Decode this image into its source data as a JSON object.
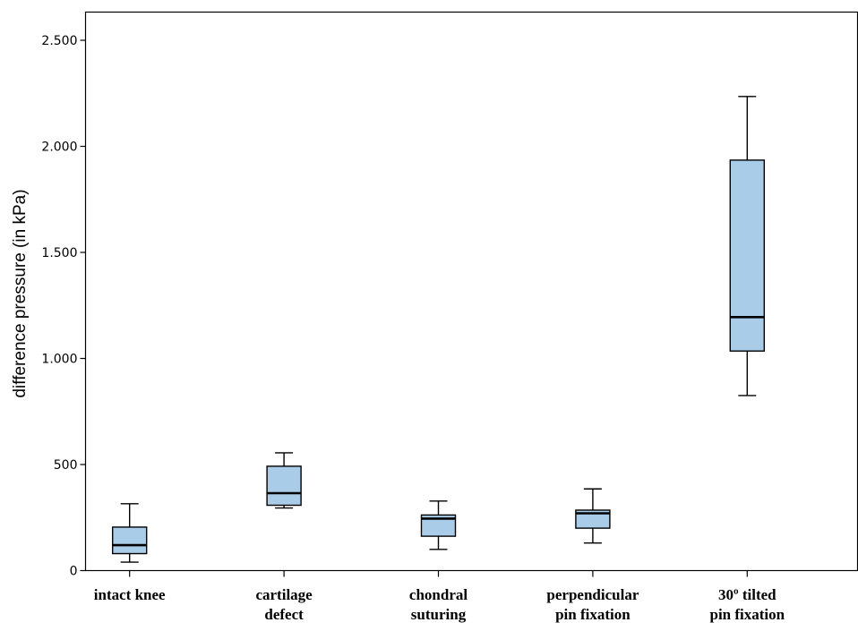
{
  "chart_data": {
    "type": "boxplot",
    "title": "",
    "xlabel": "",
    "ylabel": "difference pressure (in kPa)",
    "ylim": [
      0,
      2500
    ],
    "yticks": [
      0,
      500,
      1000,
      1500,
      2000,
      2500
    ],
    "ytick_labels": [
      "0",
      "500",
      "1.000",
      "1.500",
      "2.000",
      "2.500"
    ],
    "grid": false,
    "legend": "none",
    "box_color": "#a9cde8",
    "categories": [
      [
        "intact knee"
      ],
      [
        "cartilage",
        "defect"
      ],
      [
        "chondral",
        "suturing"
      ],
      [
        "perpendicular",
        "pin fixation"
      ],
      [
        "30º tilted",
        "pin fixation"
      ]
    ],
    "boxes": [
      {
        "min": 40,
        "q1": 80,
        "median": 120,
        "q3": 205,
        "max": 315
      },
      {
        "min": 295,
        "q1": 308,
        "median": 365,
        "q3": 492,
        "max": 555
      },
      {
        "min": 100,
        "q1": 162,
        "median": 245,
        "q3": 262,
        "max": 328
      },
      {
        "min": 130,
        "q1": 200,
        "median": 270,
        "q3": 285,
        "max": 385
      },
      {
        "min": 825,
        "q1": 1035,
        "median": 1195,
        "q3": 1935,
        "max": 2235
      }
    ]
  }
}
